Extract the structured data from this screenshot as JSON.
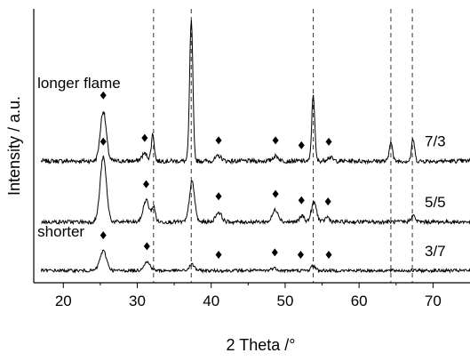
{
  "chart_data": {
    "type": "line",
    "title": "",
    "xlabel": "2 Theta /°",
    "ylabel": "Intensity / a.u.",
    "xlim": [
      16,
      75
    ],
    "xticks": [
      20,
      30,
      40,
      50,
      60,
      70
    ],
    "yticks": [],
    "grid": false,
    "legend": "none",
    "reference_lines": {
      "x": [
        32.2,
        37.3,
        53.8,
        64.3,
        67.2
      ],
      "style": "dashed"
    },
    "annotations": [
      {
        "text": "longer flame",
        "x": 16.5,
        "series": "7/3"
      },
      {
        "text": "shorter",
        "x": 16.5,
        "series": "3/7"
      }
    ],
    "peak_marker": "◆",
    "series": [
      {
        "name": "7/3",
        "baseline": 10.0,
        "noise": 0.18,
        "peaks": [
          {
            "x": 25.4,
            "h": 4.1,
            "w": 0.4
          },
          {
            "x": 31.0,
            "h": 0.6,
            "w": 0.4
          },
          {
            "x": 32.1,
            "h": 2.2,
            "w": 0.2
          },
          {
            "x": 37.3,
            "h": 11.5,
            "w": 0.22
          },
          {
            "x": 41.0,
            "h": 0.4,
            "w": 0.4
          },
          {
            "x": 48.7,
            "h": 0.4,
            "w": 0.4
          },
          {
            "x": 53.8,
            "h": 5.5,
            "w": 0.2
          },
          {
            "x": 56.0,
            "h": 0.3,
            "w": 0.4
          },
          {
            "x": 64.3,
            "h": 1.7,
            "w": 0.2
          },
          {
            "x": 67.3,
            "h": 1.8,
            "w": 0.2
          }
        ],
        "markers": [
          25.4,
          31.0,
          41.0,
          48.7,
          52.2,
          55.9
        ]
      },
      {
        "name": "5/5",
        "baseline": 5.0,
        "noise": 0.16,
        "peaks": [
          {
            "x": 25.4,
            "h": 5.3,
            "w": 0.42
          },
          {
            "x": 31.2,
            "h": 1.8,
            "w": 0.4
          },
          {
            "x": 32.2,
            "h": 1.2,
            "w": 0.25
          },
          {
            "x": 37.4,
            "h": 3.3,
            "w": 0.35
          },
          {
            "x": 41.0,
            "h": 0.8,
            "w": 0.4
          },
          {
            "x": 48.7,
            "h": 1.0,
            "w": 0.4
          },
          {
            "x": 52.3,
            "h": 0.5,
            "w": 0.3
          },
          {
            "x": 53.9,
            "h": 1.6,
            "w": 0.35
          },
          {
            "x": 55.7,
            "h": 0.4,
            "w": 0.3
          },
          {
            "x": 67.3,
            "h": 0.5,
            "w": 0.3
          }
        ],
        "markers": [
          25.4,
          31.2,
          41.0,
          48.7,
          52.2,
          55.8
        ]
      },
      {
        "name": "3/7",
        "baseline": 1.0,
        "noise": 0.13,
        "peaks": [
          {
            "x": 25.4,
            "h": 1.6,
            "w": 0.45
          },
          {
            "x": 31.3,
            "h": 0.7,
            "w": 0.45
          },
          {
            "x": 37.4,
            "h": 0.5,
            "w": 0.35
          },
          {
            "x": 48.5,
            "h": 0.2,
            "w": 0.4
          },
          {
            "x": 53.8,
            "h": 0.4,
            "w": 0.3
          }
        ],
        "markers": [
          25.4,
          31.3,
          41.0,
          48.6,
          52.1,
          55.9
        ]
      }
    ]
  }
}
